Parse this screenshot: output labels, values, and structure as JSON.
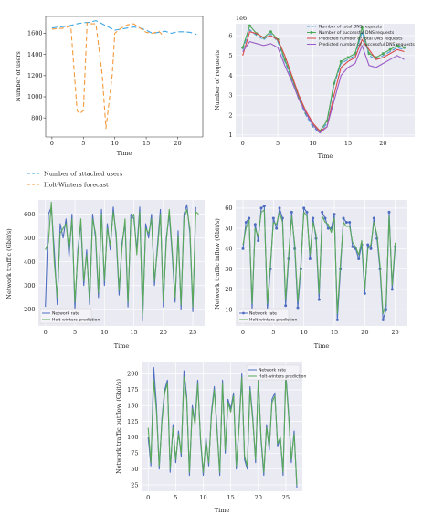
{
  "chart_data": [
    {
      "type": "line",
      "xlabel": "Time",
      "ylabel": "Number of users",
      "xlim": [
        -1,
        24
      ],
      "ylim": [
        620,
        1760
      ],
      "xticks": [
        0,
        5,
        10,
        15,
        20
      ],
      "yticks": [
        800,
        1000,
        1200,
        1400,
        1600
      ],
      "grid": false,
      "legend_position": "below",
      "series": [
        {
          "name": "Number of attached users",
          "color": "#3ea7e6",
          "dash": "6,3",
          "x": [
            0,
            1,
            2,
            3,
            4,
            5,
            6,
            7,
            8,
            9,
            10,
            11,
            12,
            13,
            14,
            15,
            16,
            17,
            18,
            19,
            20,
            21,
            22,
            23
          ],
          "y": [
            1650,
            1660,
            1665,
            1675,
            1690,
            1700,
            1705,
            1720,
            1690,
            1660,
            1630,
            1640,
            1650,
            1660,
            1650,
            1630,
            1600,
            1610,
            1620,
            1600,
            1615,
            1615,
            1610,
            1590
          ]
        },
        {
          "name": "Holt-Winters forecast",
          "color": "#f39a3b",
          "dash": "5,3",
          "x": [
            0,
            1,
            2,
            3,
            4,
            4.4,
            5,
            5.6,
            6,
            7,
            8,
            8.6,
            9.6,
            10,
            11,
            12,
            13,
            14,
            15,
            16,
            17,
            18
          ],
          "y": [
            1640,
            1645,
            1650,
            1670,
            870,
            840,
            870,
            1700,
            1690,
            1690,
            1210,
            700,
            1210,
            1600,
            1650,
            1680,
            1690,
            1650,
            1610,
            1600,
            1620,
            1560
          ]
        }
      ]
    },
    {
      "type": "line",
      "xlabel": "Time",
      "ylabel": "Number of requests",
      "scale_label": "1e6",
      "xlim": [
        -1,
        24.5
      ],
      "ylim": [
        0.9,
        6.6
      ],
      "xticks": [
        0,
        5,
        10,
        15,
        20
      ],
      "yticks": [
        1,
        2,
        3,
        4,
        5,
        6
      ],
      "grid": true,
      "legend_position": "top-right",
      "series": [
        {
          "name": "Number of total DNS requests",
          "color": "#4a9fd9",
          "marker": false,
          "dash": "5,2",
          "x": [
            0,
            1,
            2,
            3,
            4,
            5,
            6,
            7,
            8,
            9,
            10,
            11,
            12,
            13,
            14,
            15,
            16,
            17,
            18,
            19,
            20,
            21,
            22,
            23
          ],
          "y": [
            5.3,
            6.3,
            6.0,
            5.8,
            6.1,
            5.7,
            4.7,
            3.8,
            2.8,
            2.0,
            1.4,
            1.1,
            1.6,
            3.5,
            4.6,
            4.8,
            5.0,
            6.2,
            5.0,
            4.8,
            5.0,
            5.2,
            5.4,
            5.3
          ]
        },
        {
          "name": "Number of successful DNS requests",
          "color": "#4fa85a",
          "marker": true,
          "x": [
            0,
            1,
            2,
            3,
            4,
            5,
            6,
            7,
            8,
            9,
            10,
            11,
            12,
            13,
            14,
            15,
            16,
            17,
            18,
            19,
            20,
            21,
            22,
            23
          ],
          "y": [
            5.4,
            6.5,
            6.1,
            5.9,
            6.2,
            5.8,
            4.8,
            3.9,
            2.9,
            2.1,
            1.5,
            1.2,
            1.7,
            3.6,
            4.7,
            4.9,
            5.1,
            6.4,
            5.1,
            4.9,
            5.1,
            5.3,
            5.5,
            5.4
          ]
        },
        {
          "name": "Predicted number of total DNS requests",
          "color": "#d94a4a",
          "marker": false,
          "x": [
            0,
            1,
            2,
            3,
            4,
            5,
            6,
            7,
            8,
            9,
            10,
            11,
            12,
            13,
            14,
            15,
            16,
            17,
            18,
            19,
            20,
            21,
            22,
            23
          ],
          "y": [
            5.0,
            6.2,
            6.1,
            5.9,
            6.0,
            5.8,
            5.0,
            4.0,
            3.0,
            2.2,
            1.6,
            1.2,
            1.4,
            3.0,
            4.4,
            4.7,
            4.9,
            5.8,
            5.3,
            4.8,
            4.9,
            5.1,
            5.3,
            5.2
          ]
        },
        {
          "name": "Predicted number of successful DNS requests",
          "color": "#9a5cc6",
          "marker": false,
          "x": [
            0,
            1,
            2,
            3,
            4,
            5,
            6,
            7,
            8,
            9,
            10,
            11,
            12,
            13,
            14,
            15,
            16,
            17,
            18,
            19,
            20,
            21,
            22,
            23
          ],
          "y": [
            5.2,
            5.7,
            5.6,
            5.5,
            5.6,
            5.4,
            4.5,
            3.7,
            2.8,
            2.1,
            1.5,
            1.1,
            1.4,
            2.7,
            4.0,
            4.4,
            4.6,
            5.5,
            4.5,
            4.4,
            4.6,
            4.8,
            5.0,
            4.8
          ]
        }
      ]
    },
    {
      "type": "line",
      "xlabel": "Time",
      "ylabel": "Network traffic (Gbit/s)",
      "xlim": [
        -1.2,
        27
      ],
      "ylim": [
        130,
        660
      ],
      "xticks": [
        0,
        5,
        10,
        15,
        20,
        25
      ],
      "yticks": [
        200,
        300,
        400,
        500,
        600
      ],
      "grid": true,
      "legend_position": "bottom-left",
      "series": [
        {
          "name": "Network rate",
          "color": "#4f6ec0",
          "x": [
            0,
            0.5,
            1,
            1.5,
            2,
            2.5,
            3,
            3.5,
            4,
            4.5,
            5,
            5.5,
            6,
            6.5,
            7,
            7.5,
            8,
            8.5,
            9,
            9.5,
            10,
            10.5,
            11,
            11.5,
            12,
            12.5,
            13,
            13.5,
            14,
            14.5,
            15,
            15.5,
            16,
            16.5,
            17,
            17.5,
            18,
            18.5,
            19,
            19.5,
            20,
            20.5,
            21,
            21.5,
            22,
            22.5,
            23,
            23.5,
            24,
            24.5,
            25,
            25.5
          ],
          "y": [
            210,
            600,
            630,
            450,
            220,
            560,
            500,
            580,
            420,
            600,
            200,
            450,
            560,
            300,
            450,
            220,
            600,
            500,
            250,
            620,
            300,
            560,
            450,
            630,
            500,
            260,
            480,
            560,
            210,
            600,
            580,
            450,
            630,
            150,
            560,
            500,
            600,
            300,
            470,
            620,
            210,
            500,
            600,
            430,
            230,
            530,
            200,
            600,
            640,
            520,
            190,
            630
          ]
        },
        {
          "name": "Holt-winters prediction",
          "color": "#5aaa5a",
          "x": [
            0,
            0.5,
            1,
            1.5,
            2,
            2.5,
            3,
            3.5,
            4,
            4.5,
            5,
            5.5,
            6,
            6.5,
            7,
            7.5,
            8,
            8.5,
            9,
            9.5,
            10,
            10.5,
            11,
            11.5,
            12,
            12.5,
            13,
            13.5,
            14,
            14.5,
            15,
            15.5,
            16,
            16.5,
            17,
            17.5,
            18,
            18.5,
            19,
            19.5,
            20,
            20.5,
            21,
            21.5,
            22,
            22.5,
            23,
            23.5,
            24,
            24.5,
            25,
            25.5,
            26
          ],
          "y": [
            450,
            480,
            650,
            400,
            250,
            520,
            540,
            560,
            450,
            580,
            230,
            430,
            580,
            320,
            430,
            240,
            580,
            520,
            270,
            600,
            320,
            540,
            470,
            610,
            520,
            280,
            460,
            580,
            230,
            580,
            600,
            430,
            610,
            170,
            540,
            520,
            580,
            320,
            450,
            600,
            230,
            480,
            620,
            450,
            250,
            510,
            220,
            580,
            620,
            540,
            210,
            610,
            600
          ]
        }
      ]
    },
    {
      "type": "line",
      "xlabel": "Time",
      "ylabel": "Network traffic inflow (Gbit/s)",
      "xlim": [
        -1.2,
        27
      ],
      "ylim": [
        2,
        64
      ],
      "xticks": [
        0,
        5,
        10,
        15,
        20,
        25
      ],
      "yticks": [
        10,
        20,
        30,
        40,
        50,
        60
      ],
      "grid": true,
      "legend_position": "bottom-left",
      "series": [
        {
          "name": "Network rate",
          "color": "#4f6ec0",
          "marker": true,
          "x": [
            0,
            0.5,
            1,
            1.5,
            2,
            2.5,
            3,
            3.5,
            4,
            4.5,
            5,
            5.5,
            6,
            6.5,
            7,
            7.5,
            8,
            8.5,
            9,
            9.5,
            10,
            10.5,
            11,
            11.5,
            12,
            12.5,
            13,
            13.5,
            14,
            14.5,
            15,
            15.5,
            16,
            16.5,
            17,
            17.5,
            18,
            18.5,
            19,
            19.5,
            20,
            20.5,
            21,
            21.5,
            22,
            22.5,
            23,
            23.5,
            24,
            24.5,
            25
          ],
          "y": [
            40,
            53,
            55,
            10,
            52,
            44,
            60,
            61,
            10,
            30,
            55,
            50,
            60,
            55,
            12,
            35,
            58,
            40,
            11,
            30,
            60,
            58,
            35,
            55,
            45,
            15,
            58,
            55,
            50,
            50,
            57,
            5,
            30,
            55,
            53,
            53,
            41,
            40,
            35,
            42,
            18,
            42,
            40,
            55,
            45,
            30,
            5,
            10,
            58,
            20,
            41
          ]
        },
        {
          "name": "Holt-winters prediction",
          "color": "#5aaa5a",
          "x": [
            0,
            0.5,
            1,
            1.5,
            2,
            2.5,
            3,
            3.5,
            4,
            4.5,
            5,
            5.5,
            6,
            6.5,
            7,
            7.5,
            8,
            8.5,
            9,
            9.5,
            10,
            10.5,
            11,
            11.5,
            12,
            12.5,
            13,
            13.5,
            14,
            14.5,
            15,
            15.5,
            16,
            16.5,
            17,
            17.5,
            18,
            18.5,
            19,
            19.5,
            20,
            20.5,
            21,
            21.5,
            22,
            22.5,
            23,
            23.5,
            24,
            24.5,
            25
          ],
          "y": [
            42,
            50,
            54,
            13,
            50,
            46,
            58,
            59,
            13,
            32,
            53,
            52,
            58,
            53,
            15,
            37,
            56,
            42,
            14,
            32,
            58,
            56,
            37,
            53,
            47,
            18,
            56,
            53,
            52,
            48,
            55,
            8,
            33,
            53,
            51,
            51,
            43,
            41,
            37,
            44,
            20,
            40,
            42,
            53,
            47,
            32,
            8,
            13,
            56,
            22,
            43
          ]
        }
      ]
    },
    {
      "type": "line",
      "xlabel": "Time",
      "ylabel": "Network traffic outflow (Gbit/s)",
      "xlim": [
        -1.2,
        28
      ],
      "ylim": [
        15,
        218
      ],
      "xticks": [
        0,
        5,
        10,
        15,
        20,
        25
      ],
      "yticks": [
        25,
        50,
        75,
        100,
        125,
        150,
        175,
        200
      ],
      "grid": true,
      "legend_position": "top-right",
      "series": [
        {
          "name": "Network rate",
          "color": "#4f6ec0",
          "x": [
            0,
            0.5,
            1,
            1.5,
            2,
            2.5,
            3,
            3.5,
            4,
            4.5,
            5,
            5.5,
            6,
            6.5,
            7,
            7.5,
            8,
            8.5,
            9,
            9.5,
            10,
            10.5,
            11,
            11.5,
            12,
            12.5,
            13,
            13.5,
            14,
            14.5,
            15,
            15.5,
            16,
            16.5,
            17,
            17.5,
            18,
            18.5,
            19,
            19.5,
            20,
            20.5,
            21,
            21.5,
            22,
            22.5,
            23,
            23.5,
            24,
            24.5,
            25,
            25.5,
            26,
            26.5,
            27
          ],
          "y": [
            100,
            55,
            210,
            150,
            50,
            130,
            175,
            190,
            45,
            120,
            60,
            110,
            70,
            205,
            165,
            40,
            150,
            125,
            190,
            95,
            40,
            100,
            55,
            140,
            180,
            115,
            40,
            190,
            75,
            160,
            145,
            170,
            50,
            120,
            200,
            65,
            50,
            180,
            130,
            60,
            195,
            95,
            40,
            120,
            80,
            160,
            170,
            85,
            100,
            40,
            200,
            140,
            60,
            110,
            20
          ]
        },
        {
          "name": "Holt-winters prediction",
          "color": "#5aaa5a",
          "x": [
            0,
            0.5,
            1,
            1.5,
            2,
            2.5,
            3,
            3.5,
            4,
            4.5,
            5,
            5.5,
            6,
            6.5,
            7,
            7.5,
            8,
            8.5,
            9,
            9.5,
            10,
            10.5,
            11,
            11.5,
            12,
            12.5,
            13,
            13.5,
            14,
            14.5,
            15,
            15.5,
            16,
            16.5,
            17,
            17.5,
            18,
            18.5,
            19,
            19.5,
            20,
            20.5,
            21,
            21.5,
            22,
            22.5,
            23,
            23.5,
            24,
            24.5,
            25,
            25.5,
            26,
            26.5,
            27
          ],
          "y": [
            115,
            60,
            190,
            140,
            55,
            125,
            170,
            185,
            50,
            115,
            65,
            105,
            75,
            195,
            160,
            45,
            145,
            120,
            185,
            100,
            45,
            95,
            60,
            135,
            175,
            110,
            45,
            185,
            80,
            155,
            140,
            165,
            55,
            115,
            195,
            70,
            55,
            175,
            125,
            65,
            190,
            100,
            45,
            115,
            85,
            155,
            165,
            90,
            100,
            45,
            195,
            135,
            65,
            105,
            25
          ]
        }
      ]
    }
  ]
}
